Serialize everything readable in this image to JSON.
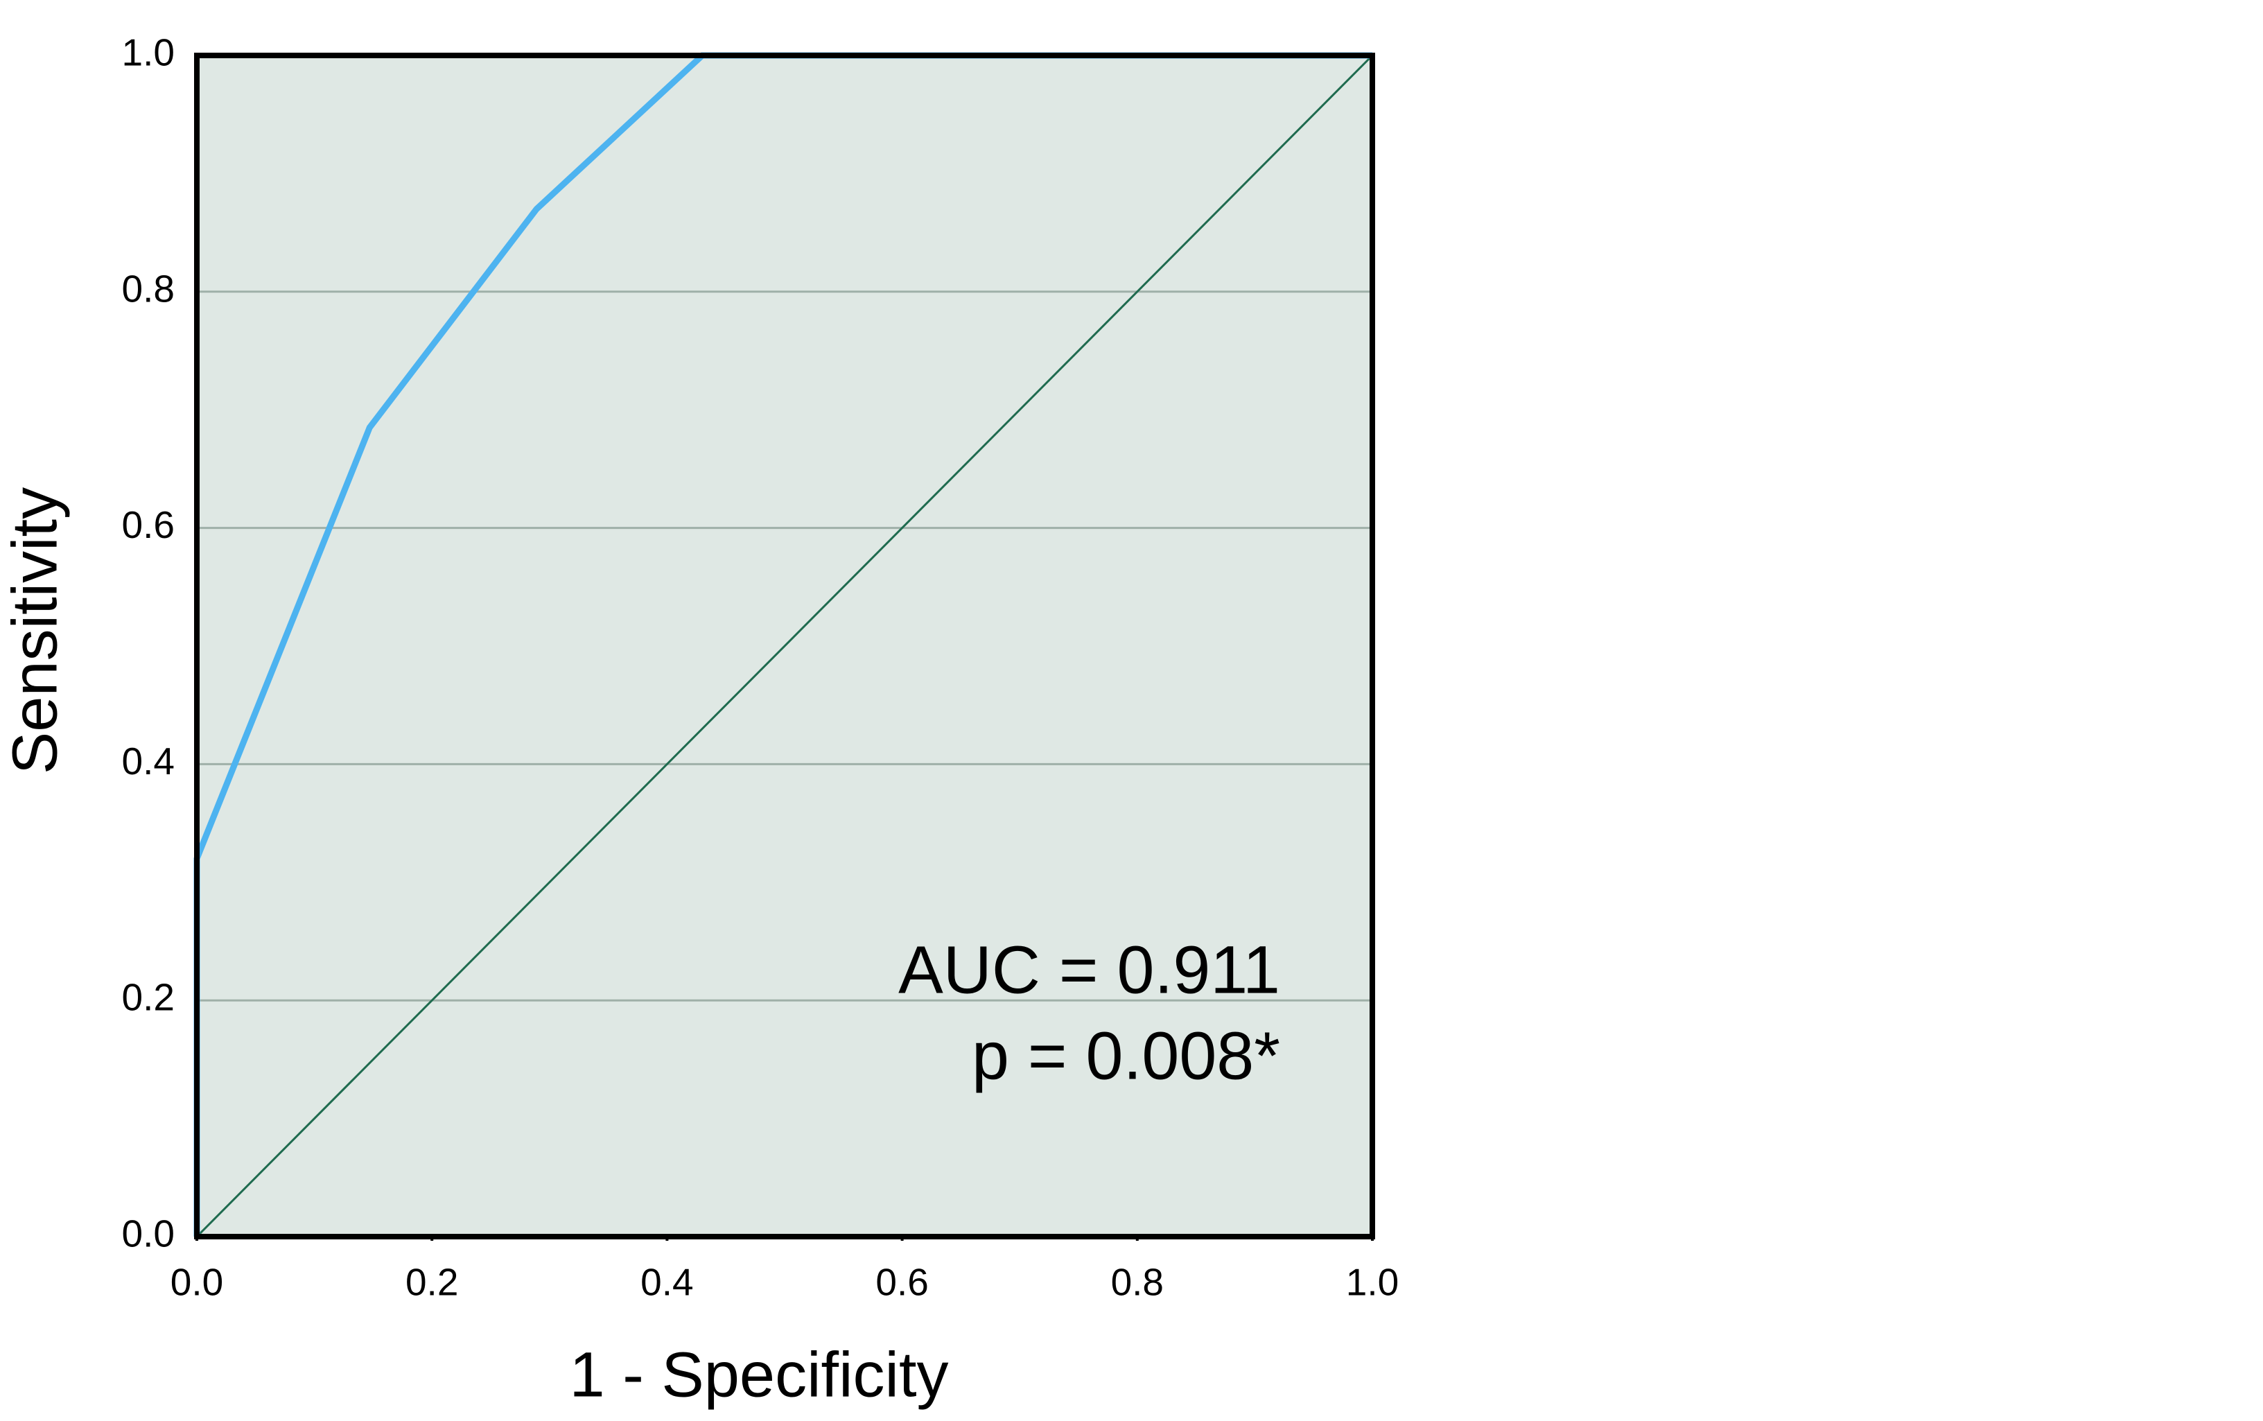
{
  "chart_data": {
    "type": "line",
    "x_label": "1 - Specificity",
    "y_label": "Sensitivity",
    "xlim": [
      0,
      1
    ],
    "ylim": [
      0,
      1
    ],
    "xticks": [
      {
        "value": 0,
        "label": "0.0"
      },
      0.2,
      0.4,
      0.6,
      0.8,
      {
        "value": 1,
        "label": "1.0"
      }
    ],
    "yticks": [
      {
        "value": 0,
        "label": "0.0"
      },
      0.2,
      0.4,
      0.6,
      0.8,
      {
        "value": 1,
        "label": "1.0"
      }
    ],
    "grid": true,
    "background": "#dfe8e4",
    "grid_color": "#9fb0a8",
    "series": [
      {
        "color": "#4db3f0",
        "x": [
          0,
          0,
          0.147,
          0.289,
          0.43,
          1
        ],
        "values": [
          0,
          0.32,
          0.685,
          0.87,
          1,
          1
        ]
      },
      {
        "color": "#1f6b4f",
        "x": [
          0,
          1
        ],
        "values": [
          0,
          1
        ]
      }
    ],
    "annotations": [
      "AUC = 0.911",
      "p = 0.008*"
    ]
  }
}
